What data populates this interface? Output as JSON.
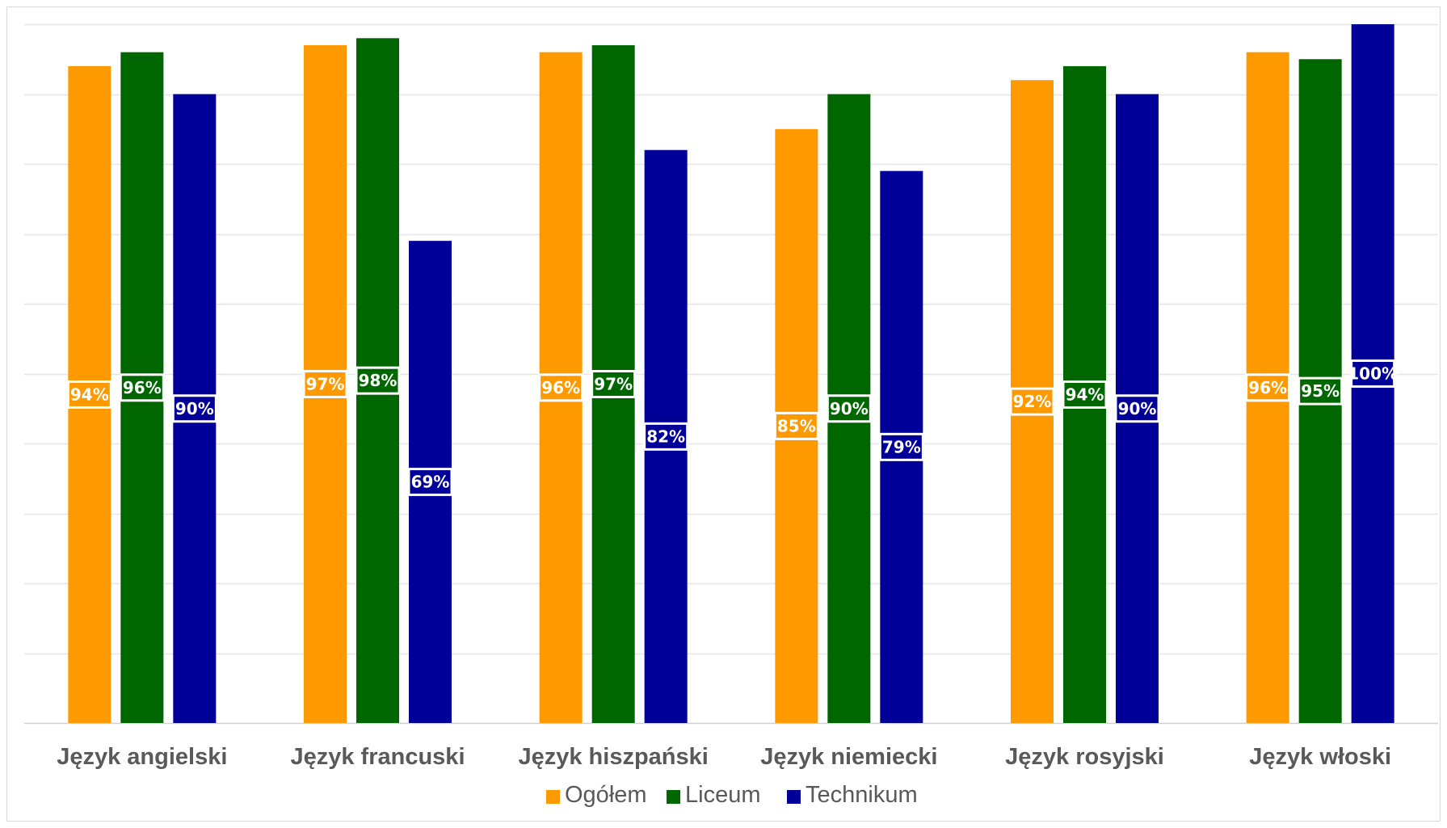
{
  "chart_data": {
    "type": "bar",
    "categories": [
      "Język angielski",
      "Język francuski",
      "Język hiszpański",
      "Język niemiecki",
      "Język rosyjski",
      "Język włoski"
    ],
    "series": [
      {
        "name": "Ogółem",
        "color": "#FF9900",
        "values": [
          94,
          97,
          96,
          85,
          92,
          96
        ],
        "labels": [
          "94%",
          "97%",
          "96%",
          "85%",
          "92%",
          "96%"
        ]
      },
      {
        "name": "Liceum",
        "color": "#006600",
        "values": [
          96,
          98,
          97,
          90,
          94,
          95
        ],
        "labels": [
          "96%",
          "98%",
          "97%",
          "90%",
          "94%",
          "95%"
        ]
      },
      {
        "name": "Technikum",
        "color": "#000099",
        "values": [
          90,
          69,
          82,
          79,
          90,
          100
        ],
        "labels": [
          "90%",
          "69%",
          "82%",
          "79%",
          "90%",
          "100%"
        ]
      }
    ],
    "ylim": [
      0,
      100
    ],
    "grid": true,
    "legend": "bottom-center"
  }
}
